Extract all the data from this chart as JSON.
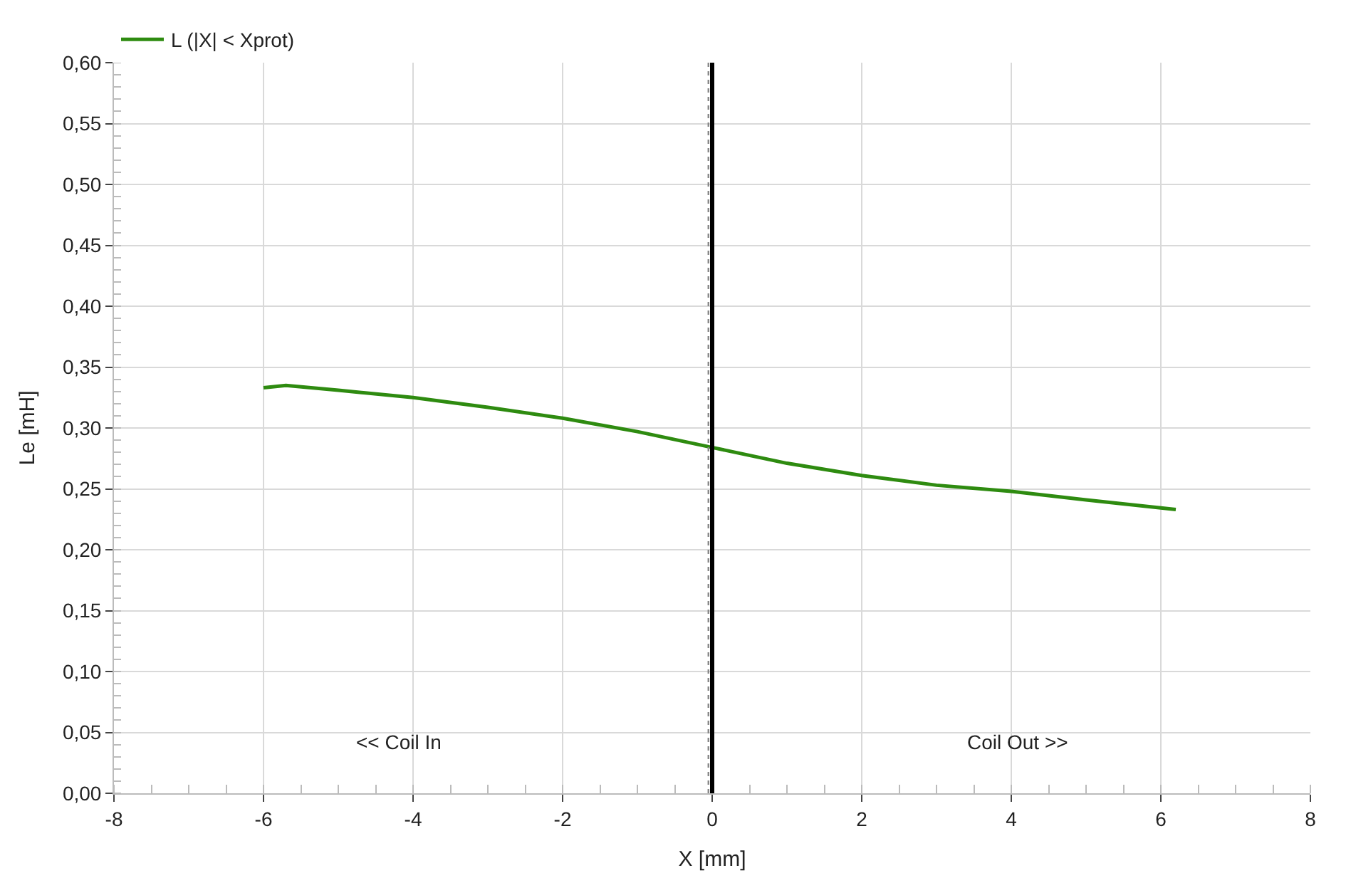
{
  "chart_data": {
    "type": "line",
    "xlabel": "X [mm]",
    "ylabel": "Le [mH]",
    "x": [
      -6,
      -5.7,
      -5,
      -4,
      -3,
      -2,
      -1,
      0,
      1,
      2,
      3,
      4,
      5,
      6.2
    ],
    "series": [
      {
        "name": "L (|X| < Xprot)",
        "color": "#2e8b10",
        "values": [
          0.333,
          0.335,
          0.331,
          0.325,
          0.317,
          0.308,
          0.297,
          0.284,
          0.271,
          0.261,
          0.253,
          0.248,
          0.241,
          0.233
        ]
      }
    ],
    "xlim": [
      -8,
      8
    ],
    "xticks": [
      -8,
      -6,
      -4,
      -2,
      0,
      2,
      4,
      6,
      8
    ],
    "ylim": [
      0,
      0.6
    ],
    "yticks": [
      {
        "value": 0,
        "label": "0,00"
      },
      {
        "value": 0.05,
        "label": "0,05"
      },
      {
        "value": 0.1,
        "label": "0,10"
      },
      {
        "value": 0.15,
        "label": "0,15"
      },
      {
        "value": 0.2,
        "label": "0,20"
      },
      {
        "value": 0.25,
        "label": "0,25"
      },
      {
        "value": 0.3,
        "label": "0,30"
      },
      {
        "value": 0.35,
        "label": "0,35"
      },
      {
        "value": 0.4,
        "label": "0,40"
      },
      {
        "value": 0.45,
        "label": "0,45"
      },
      {
        "value": 0.5,
        "label": "0,50"
      },
      {
        "value": 0.55,
        "label": "0,55"
      },
      {
        "value": 0.6,
        "label": "0,60"
      }
    ],
    "ref_lines": [
      {
        "axis": "x",
        "value": -0.05,
        "color": "#888888",
        "line_style": "dotted"
      },
      {
        "axis": "x",
        "value": 0,
        "color": "#000000",
        "line_style": "solid"
      }
    ],
    "annotations": [
      "<< Coil In",
      "Coil Out >>"
    ],
    "grid": true,
    "legend": "top left",
    "line_style": "solid",
    "marker": "none"
  }
}
